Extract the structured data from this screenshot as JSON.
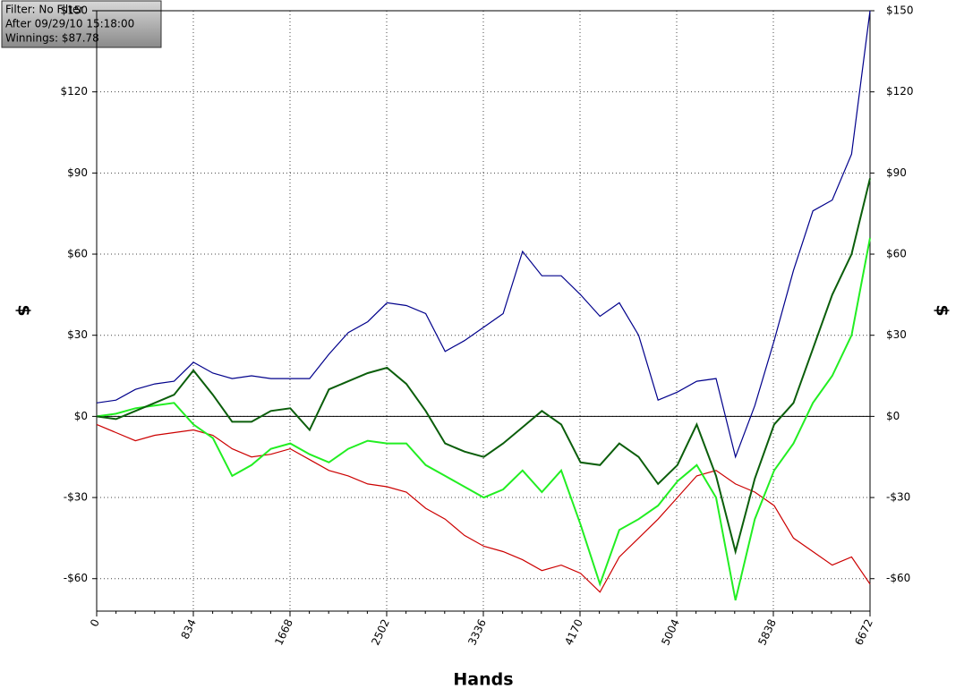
{
  "info": {
    "lines": [
      "Filter: No Filter",
      "After 09/29/10 15:18:00",
      "Winnings: $87.78"
    ]
  },
  "chart_data": {
    "type": "line",
    "xlabel": "Hands",
    "ylabel": "$",
    "y2label": "$",
    "x": [
      0,
      167,
      334,
      501,
      668,
      835,
      1002,
      1169,
      1336,
      1503,
      1670,
      1837,
      2004,
      2171,
      2338,
      2505,
      2672,
      2839,
      3006,
      3173,
      3340,
      3507,
      3674,
      3841,
      4008,
      4175,
      4342,
      4509,
      4676,
      4843,
      5010,
      5177,
      5344,
      5511,
      5678,
      5845,
      6012,
      6179,
      6346,
      6513,
      6672
    ],
    "xlim": [
      0,
      6672
    ],
    "xticks": [
      0,
      834,
      1668,
      2502,
      3336,
      4170,
      5004,
      5838,
      6672
    ],
    "ylim": [
      -72,
      150
    ],
    "yticks": [
      {
        "value": -60,
        "label": "-$60"
      },
      {
        "value": -30,
        "label": "-$30"
      },
      {
        "value": 0,
        "label": "$0"
      },
      {
        "value": 30,
        "label": "$30"
      },
      {
        "value": 60,
        "label": "$60"
      },
      {
        "value": 90,
        "label": "$90"
      },
      {
        "value": 120,
        "label": "$120"
      },
      {
        "value": 150,
        "label": "$150"
      }
    ],
    "grid": true,
    "series": [
      {
        "color": "#00008b",
        "values": [
          5,
          6,
          10,
          12,
          13,
          20,
          16,
          14,
          15,
          14,
          14,
          14,
          23,
          31,
          35,
          42,
          41,
          38,
          24,
          28,
          33,
          38,
          61,
          52,
          52,
          45,
          37,
          42,
          30,
          6,
          9,
          13,
          14,
          -15,
          4,
          28,
          54,
          76,
          80,
          97,
          150
        ]
      },
      {
        "color": "#cc0000",
        "values": [
          -3,
          -6,
          -9,
          -7,
          -6,
          -5,
          -7,
          -12,
          -15,
          -14,
          -12,
          -16,
          -20,
          -22,
          -25,
          -26,
          -28,
          -34,
          -38,
          -44,
          -48,
          -50,
          -53,
          -57,
          -55,
          -58,
          -65,
          -52,
          -45,
          -38,
          -30,
          -22,
          -20,
          -25,
          -28,
          -33,
          -45,
          -50,
          -55,
          -52,
          -62
        ]
      },
      {
        "color": "#22ee22",
        "values": [
          0,
          1,
          3,
          4,
          5,
          -3,
          -8,
          -22,
          -18,
          -12,
          -10,
          -14,
          -17,
          -12,
          -9,
          -10,
          -10,
          -18,
          -22,
          -26,
          -30,
          -27,
          -20,
          -28,
          -20,
          -40,
          -62,
          -42,
          -38,
          -33,
          -24,
          -18,
          -30,
          -68,
          -38,
          -20,
          -10,
          5,
          15,
          30,
          66
        ]
      },
      {
        "color": "#0b5e0b",
        "values": [
          0,
          -1,
          2,
          5,
          8,
          17,
          8,
          -2,
          -2,
          2,
          3,
          -5,
          10,
          13,
          16,
          18,
          12,
          2,
          -10,
          -13,
          -15,
          -10,
          -4,
          2,
          -3,
          -17,
          -18,
          -10,
          -15,
          -25,
          -18,
          -3,
          -22,
          -50,
          -23,
          -3,
          5,
          25,
          45,
          60,
          88
        ]
      }
    ]
  }
}
